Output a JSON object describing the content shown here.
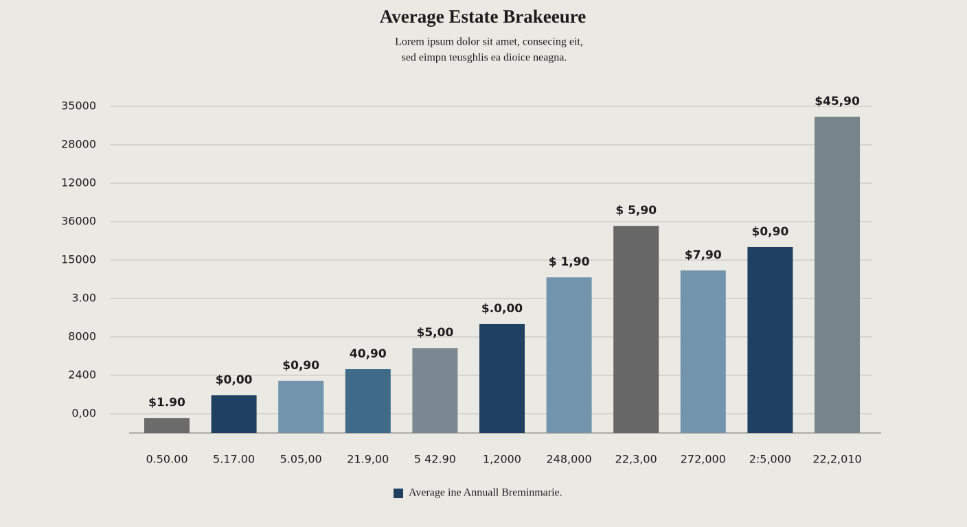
{
  "chart_data": {
    "type": "bar",
    "title": "Average Estate Brakeeure",
    "subtitle": [
      "Lorem ipsum dolor sit amet, consecing eit,",
      "sed eimpn teusghlis ea dioice neagna."
    ],
    "categories": [
      "0.50.00",
      "5.17.00",
      "5.05,00",
      "21.9,00",
      "5 42.90",
      "1,2000",
      "248,000",
      "22,3,00",
      "272,000",
      "2:5,000",
      "22,2,010"
    ],
    "series": [
      {
        "name": "Average ine Annuall Breminmarie.",
        "color": "#1f4060",
        "values": [
          0.39,
          0.98,
          1.36,
          1.66,
          2.21,
          2.84,
          4.05,
          5.39,
          4.23,
          4.84,
          8.23
        ],
        "value_labels": [
          "$1.90",
          "$0,00",
          "$0,90",
          "40,90",
          "$5,00",
          "$.0,00",
          "$ 1,90",
          "$ 5,90",
          "$7,90",
          "$0,90",
          "$45,90"
        ],
        "colors": [
          "#6b6b6b",
          "#1f4060",
          "#7394ad",
          "#3f6a8a",
          "#7b8791",
          "#1f4060",
          "#7394ad",
          "#676767",
          "#7394ad",
          "#1f4060",
          "#78848c"
        ]
      }
    ],
    "ylim": [
      0,
      9
    ],
    "yticks": [
      {
        "value": 0.5,
        "label": "0,00"
      },
      {
        "value": 1.5,
        "label": "2400"
      },
      {
        "value": 2.5,
        "label": "8000"
      },
      {
        "value": 3.5,
        "label": "3.00"
      },
      {
        "value": 4.5,
        "label": "15000"
      },
      {
        "value": 5.5,
        "label": "36000"
      },
      {
        "value": 6.5,
        "label": "12000"
      },
      {
        "value": 7.5,
        "label": "28000"
      },
      {
        "value": 8.5,
        "label": "35000"
      }
    ],
    "grid": true
  }
}
